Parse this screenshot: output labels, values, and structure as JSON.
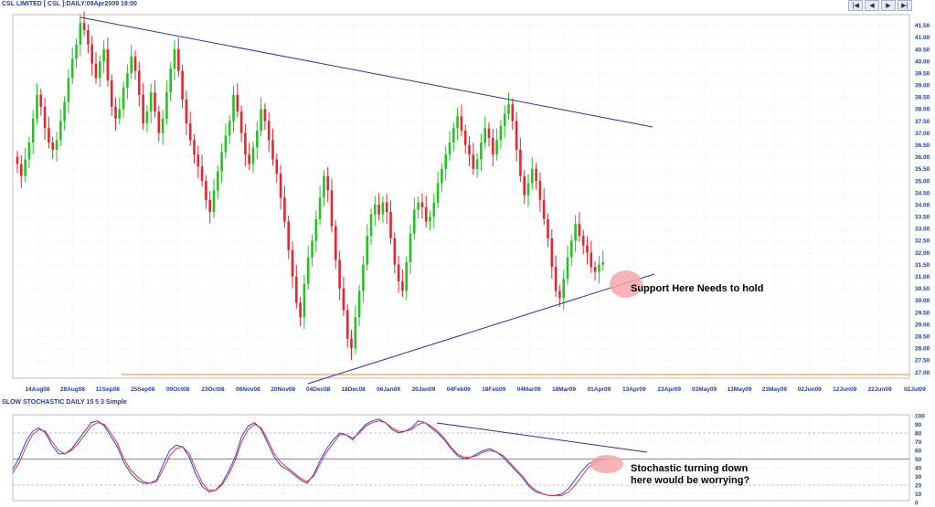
{
  "toolbar": {
    "nav_buttons": [
      {
        "name": "first-icon",
        "glyph": "|◀"
      },
      {
        "name": "prev-icon",
        "glyph": "◀"
      },
      {
        "name": "next-icon",
        "glyph": "▶"
      },
      {
        "name": "last-icon",
        "glyph": "▶|"
      }
    ]
  },
  "chart_data": [
    {
      "type": "candlestick",
      "title": "CSL LIMITED [ CSL ]:DAILY:09Apr2009 19:00",
      "ylim": [
        26.75,
        41.95
      ],
      "y_ticks": [
        "27.00",
        "27.50",
        "28.00",
        "28.50",
        "29.00",
        "29.50",
        "30.00",
        "30.50",
        "31.00",
        "31.50",
        "32.00",
        "32.50",
        "33.00",
        "33.50",
        "34.00",
        "34.50",
        "35.00",
        "35.50",
        "36.00",
        "36.50",
        "37.00",
        "37.50",
        "38.00",
        "38.50",
        "39.00",
        "39.50",
        "40.00",
        "40.50",
        "41.00",
        "41.50"
      ],
      "x_ticks": [
        "14Aug08",
        "28Aug08",
        "11Sep08",
        "25Sep08",
        "09Oct08",
        "23Oct08",
        "06Nov08",
        "20Nov08",
        "04Dec08",
        "18Dec08",
        "06Jan09",
        "20Jan09",
        "04Feb09",
        "18Feb09",
        "04Mar09",
        "18Mar09",
        "01Apr09",
        "13Apr09",
        "23Apr09",
        "03May09",
        "13May09",
        "23May09",
        "02Jun09",
        "12Jun09",
        "22Jun09",
        "02Jul09"
      ],
      "closes": [
        35.7,
        35.2,
        35.9,
        36.6,
        37.6,
        38.6,
        38.1,
        37.2,
        36.6,
        36.3,
        36.7,
        37.5,
        38.3,
        39.3,
        40.1,
        40.7,
        41.6,
        41.3,
        40.7,
        39.9,
        39.3,
        40.0,
        40.5,
        39.2,
        38.1,
        37.6,
        38.0,
        38.9,
        39.5,
        40.2,
        39.6,
        38.6,
        37.4,
        37.9,
        38.7,
        37.9,
        37.0,
        37.6,
        38.7,
        39.7,
        40.5,
        39.6,
        38.4,
        37.4,
        36.7,
        36.1,
        35.6,
        35.0,
        34.2,
        33.7,
        34.6,
        35.4,
        36.2,
        36.9,
        37.5,
        38.6,
        37.9,
        37.0,
        36.1,
        35.7,
        36.4,
        37.1,
        38.0,
        37.5,
        36.7,
        35.9,
        35.3,
        34.3,
        33.3,
        32.1,
        31.0,
        29.9,
        29.3,
        30.7,
        31.8,
        32.5,
        33.4,
        34.3,
        35.2,
        34.6,
        33.1,
        31.7,
        30.5,
        29.6,
        28.4,
        28.0,
        29.3,
        30.4,
        31.5,
        32.7,
        33.6,
        34.0,
        33.6,
        34.1,
        33.7,
        32.6,
        31.5,
        30.8,
        30.4,
        31.6,
        32.8,
        33.8,
        34.1,
        33.9,
        33.3,
        33.5,
        34.1,
        34.9,
        35.5,
        36.1,
        36.6,
        37.2,
        37.7,
        37.1,
        36.5,
        36.1,
        35.5,
        35.9,
        36.6,
        37.2,
        36.8,
        36.1,
        36.7,
        37.3,
        37.8,
        38.2,
        37.5,
        36.3,
        35.2,
        34.4,
        34.9,
        35.5,
        35.0,
        34.2,
        33.4,
        32.6,
        31.4,
        30.4,
        30.1,
        30.9,
        31.8,
        32.5,
        33.2,
        32.7,
        32.3,
        32.0,
        31.4,
        31.2,
        31.5,
        31.6
      ],
      "annotations": [
        "Support Here Needs to hold"
      ]
    },
    {
      "type": "line",
      "title": "SLOW STOCHASTIC DAILY 15 5 3 Simple",
      "ylim": [
        0,
        100
      ],
      "y_ticks": [
        "0",
        "10",
        "20",
        "30",
        "40",
        "50",
        "60",
        "70",
        "80",
        "90",
        "100"
      ],
      "series": [
        {
          "color": "#2a46d6",
          "values": [
            38,
            52,
            70,
            82,
            86,
            80,
            66,
            56,
            56,
            62,
            72,
            82,
            92,
            94,
            88,
            76,
            64,
            46,
            34,
            26,
            22,
            22,
            26,
            44,
            60,
            66,
            64,
            52,
            32,
            18,
            12,
            14,
            22,
            36,
            52,
            76,
            88,
            92,
            84,
            68,
            52,
            42,
            38,
            32,
            26,
            22,
            32,
            48,
            62,
            72,
            80,
            78,
            72,
            82,
            90,
            94,
            96,
            92,
            84,
            80,
            82,
            86,
            94,
            92,
            86,
            80,
            72,
            62,
            54,
            50,
            52,
            56,
            60,
            62,
            58,
            52,
            44,
            36,
            28,
            18,
            12,
            10,
            8,
            8,
            10,
            16,
            26,
            36,
            44,
            48,
            50,
            50
          ]
        },
        {
          "color": "#e0353a",
          "values": [
            34,
            46,
            64,
            78,
            84,
            82,
            70,
            60,
            56,
            60,
            68,
            78,
            88,
            92,
            90,
            80,
            68,
            50,
            38,
            30,
            24,
            22,
            24,
            38,
            54,
            62,
            64,
            56,
            38,
            22,
            14,
            14,
            20,
            32,
            48,
            70,
            84,
            90,
            86,
            72,
            56,
            46,
            40,
            34,
            28,
            24,
            30,
            44,
            58,
            68,
            78,
            78,
            74,
            80,
            88,
            92,
            94,
            92,
            86,
            82,
            82,
            84,
            90,
            92,
            88,
            82,
            74,
            64,
            56,
            52,
            52,
            54,
            58,
            60,
            58,
            54,
            46,
            38,
            30,
            20,
            14,
            10,
            8,
            8,
            8,
            12,
            20,
            30,
            40,
            46,
            48,
            50
          ]
        }
      ],
      "annotations": [
        "Stochastic turning down",
        "here would be worrying?"
      ]
    }
  ],
  "colors": {
    "up": "#22c322",
    "down": "#e3262f",
    "stoch_k": "#2a46d6",
    "stoch_d": "#e0353a",
    "trend": "#2f2f9c",
    "support_hline": "#e8a33b",
    "axis_text": "#1c3fa0",
    "grid": "#cfd6e4",
    "ellipse": "#f4a7aa"
  }
}
